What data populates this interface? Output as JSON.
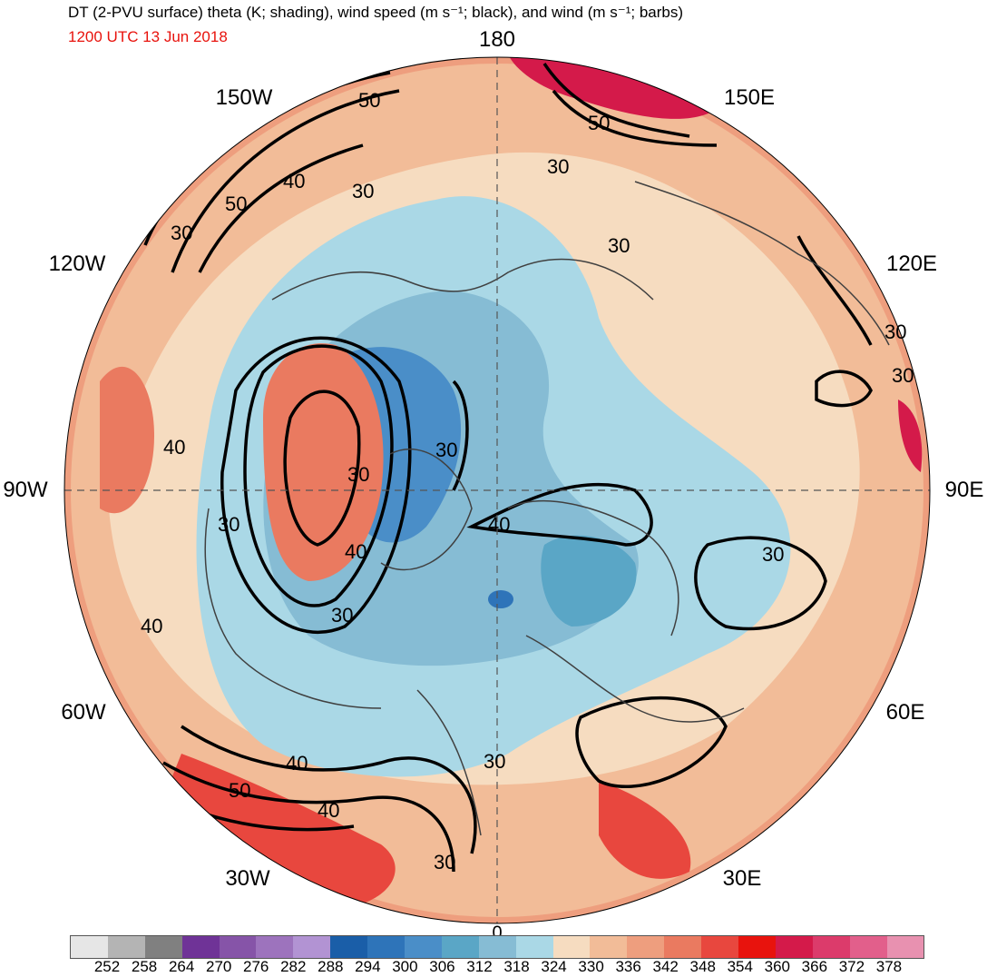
{
  "title": "DT (2-PVU surface) theta (K; shading), wind speed (m s⁻¹; black), and wind (m s⁻¹; barbs)",
  "valid_time": "1200 UTC 13 Jun 2018",
  "longitude_labels": {
    "top": "180",
    "left": "90W",
    "right": "90E",
    "bottom": "0",
    "upper_left": "150W",
    "upper_right": "150E",
    "mid_left_upper": "120W",
    "mid_right_upper": "120E",
    "mid_left_lower": "60W",
    "mid_right_lower": "60E",
    "lower_left": "30W",
    "lower_right": "30E"
  },
  "contour_labels": [
    "50",
    "40",
    "30",
    "50",
    "30",
    "50",
    "30",
    "30",
    "40",
    "30",
    "40",
    "30",
    "30",
    "40",
    "40",
    "30",
    "30",
    "30",
    "30",
    "40",
    "30",
    "40",
    "30",
    "50"
  ],
  "colorbar": {
    "colors": [
      "#e6e6e6",
      "#b4b4b4",
      "#808080",
      "#6f3397",
      "#8654a8",
      "#9d73bd",
      "#b293d3",
      "#1a5ea8",
      "#2e74b9",
      "#4a8ec8",
      "#5aa6c6",
      "#86bcd4",
      "#aad8e6",
      "#f6dcc0",
      "#f2bc98",
      "#ee9e7e",
      "#ea7a60",
      "#e8473e",
      "#e8130d",
      "#d41a4a",
      "#dc3b6b",
      "#e25f8b",
      "#e891b0"
    ],
    "ticks": [
      "252",
      "258",
      "264",
      "270",
      "276",
      "282",
      "288",
      "294",
      "300",
      "306",
      "312",
      "318",
      "324",
      "330",
      "336",
      "342",
      "348",
      "354",
      "360",
      "366",
      "372",
      "378"
    ]
  }
}
